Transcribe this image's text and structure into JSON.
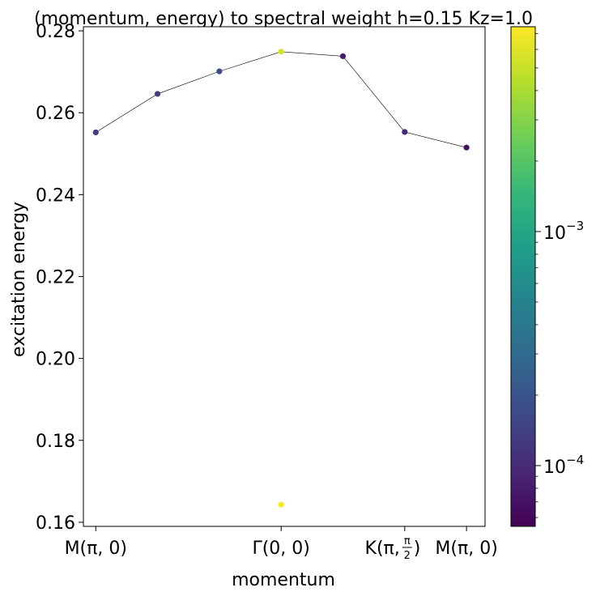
{
  "chart_data": {
    "type": "scatter",
    "title": "(momentum, energy) to spectral weight h=0.15 Kz=1.0",
    "xlabel": "momentum",
    "ylabel": "excitation energy",
    "x_ticks": [
      {
        "x": 0,
        "label_main": "M(π, 0)",
        "label_frac": ""
      },
      {
        "x": 3,
        "label_main": "Γ(0, 0)",
        "label_frac": ""
      },
      {
        "x": 5,
        "label_main": "K(π, ",
        "label_frac": "π/2",
        "label_tail": ")"
      },
      {
        "x": 6,
        "label_main": "M(π, 0)",
        "label_frac": ""
      }
    ],
    "xlim": [
      -0.2,
      6.3
    ],
    "ylim": [
      0.159,
      0.281
    ],
    "y_ticks": [
      "0.16",
      "0.18",
      "0.20",
      "0.22",
      "0.24",
      "0.26",
      "0.28"
    ],
    "line_series": {
      "x": [
        0,
        1,
        2,
        3,
        4,
        5,
        6
      ],
      "y": [
        0.2552,
        0.2646,
        0.2701,
        0.2749,
        0.2738,
        0.2553,
        0.2515
      ]
    },
    "points": [
      {
        "x": 0,
        "y": 0.2552,
        "weight": 0.00013
      },
      {
        "x": 1,
        "y": 0.2646,
        "weight": 0.00013
      },
      {
        "x": 2,
        "y": 0.2701,
        "weight": 0.00018
      },
      {
        "x": 3,
        "y": 0.2749,
        "weight": 0.0055
      },
      {
        "x": 4,
        "y": 0.2738,
        "weight": 8e-05
      },
      {
        "x": 5,
        "y": 0.2553,
        "weight": 0.0001
      },
      {
        "x": 6,
        "y": 0.2515,
        "weight": 7e-05
      },
      {
        "x": 3,
        "y": 0.1643,
        "weight": 0.0075
      }
    ],
    "colorbar": {
      "scale": "log",
      "colormap": "viridis",
      "range": [
        5.5e-05,
        0.0075
      ],
      "tick_base": "10",
      "ticks": [
        {
          "value": 0.001,
          "exponent": "−3"
        },
        {
          "value": 0.0001,
          "exponent": "−4"
        }
      ]
    },
    "colors": {
      "viridis": [
        "#440154",
        "#482878",
        "#3e4989",
        "#31688e",
        "#26828e",
        "#1f9e89",
        "#35b779",
        "#6ece58",
        "#b5de2b",
        "#fde725"
      ],
      "line": "#000000"
    }
  }
}
